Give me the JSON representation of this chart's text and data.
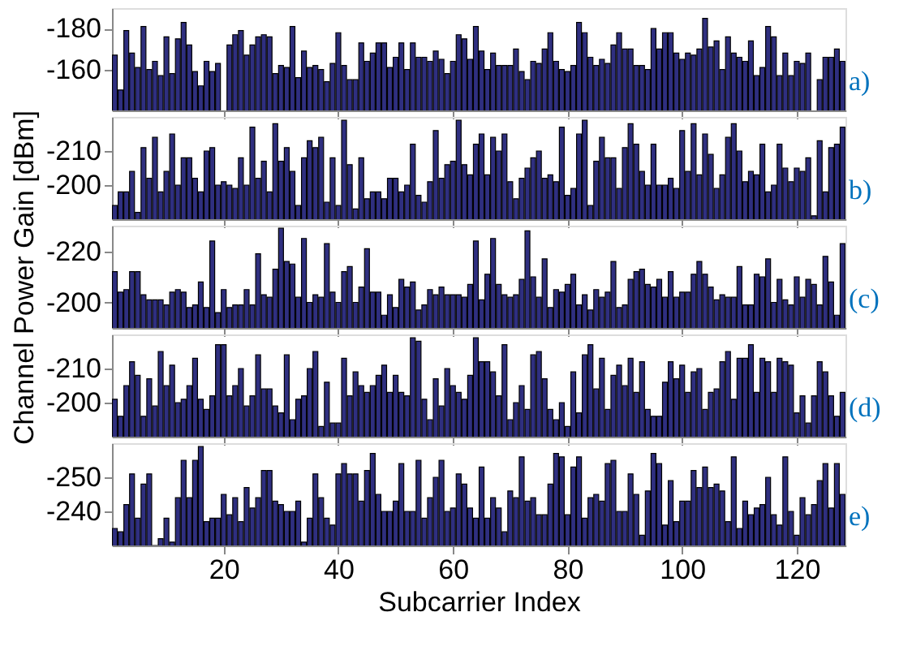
{
  "chart_data": [
    {
      "type": "bar",
      "color": "#2f2f80",
      "x": [
        1,
        2,
        3,
        4,
        5,
        6,
        7,
        8,
        9,
        10,
        11,
        12,
        13,
        14,
        15,
        16,
        17,
        18,
        19,
        20,
        21,
        22,
        23,
        24,
        25,
        26,
        27,
        28,
        29,
        30,
        31,
        32,
        33,
        34,
        35,
        36,
        37,
        38,
        39,
        40,
        41,
        42,
        43,
        44,
        45,
        46,
        47,
        48,
        49,
        50,
        51,
        52,
        53,
        54,
        55,
        56,
        57,
        58,
        59,
        60,
        61,
        62,
        63,
        64,
        65,
        66,
        67,
        68,
        69,
        70,
        71,
        72,
        73,
        74,
        75,
        76,
        77,
        78,
        79,
        80,
        81,
        82,
        83,
        84,
        85,
        86,
        87,
        88,
        89,
        90,
        91,
        92,
        93,
        94,
        95,
        96,
        97,
        98,
        99,
        100,
        101,
        102,
        103,
        104,
        105,
        106,
        107,
        108,
        109,
        110,
        111,
        112,
        113,
        114,
        115,
        116,
        117,
        118,
        119,
        120,
        121,
        122,
        123,
        124,
        125,
        126,
        127,
        128
      ],
      "values": [
        -167,
        -150,
        -179,
        -168,
        -161,
        -181,
        -160,
        -164,
        -157,
        -176,
        -158,
        -175,
        -183,
        -172,
        -159,
        -152,
        -164,
        -159,
        -163,
        null,
        -172,
        -177,
        -179,
        -167,
        -172,
        -176,
        -177,
        -176,
        -158,
        -162,
        -161,
        -181,
        -156,
        -169,
        -161,
        -162,
        -160,
        -154,
        -163,
        -178,
        -162,
        -155,
        -155,
        -173,
        -164,
        -168,
        -173,
        -173,
        -161,
        -166,
        -173,
        -160,
        -173,
        -166,
        -166,
        -164,
        -169,
        -165,
        -158,
        -164,
        -177,
        -175,
        -165,
        -181,
        -169,
        -160,
        -168,
        -162,
        -162,
        -162,
        -170,
        -159,
        -155,
        -164,
        -163,
        -170,
        -178,
        -164,
        -160,
        -159,
        -162,
        -183,
        -178,
        -166,
        -162,
        -165,
        -163,
        -172,
        -178,
        -170,
        -170,
        -162,
        -162,
        -160,
        -180,
        -170,
        -178,
        -178,
        -168,
        -165,
        -168,
        -167,
        -170,
        -185,
        -171,
        -174,
        -160,
        -176,
        -168,
        -166,
        -164,
        -174,
        -157,
        -161,
        -181,
        -176,
        -157,
        -168,
        -157,
        -164,
        -163,
        -168,
        null,
        -155,
        -166,
        -166,
        -170,
        -164
      ],
      "xlim": [
        0.5,
        128.5
      ],
      "xticks": [
        20,
        40,
        60,
        80,
        100,
        120
      ],
      "ylim": [
        -140,
        -190
      ],
      "yticks": [
        -180,
        -160
      ],
      "tick_labels": "y",
      "annotations": [
        "a)"
      ]
    },
    {
      "type": "bar",
      "color": "#2f2f80",
      "x": [
        1,
        2,
        3,
        4,
        5,
        6,
        7,
        8,
        9,
        10,
        11,
        12,
        13,
        14,
        15,
        16,
        17,
        18,
        19,
        20,
        21,
        22,
        23,
        24,
        25,
        26,
        27,
        28,
        29,
        30,
        31,
        32,
        33,
        34,
        35,
        36,
        37,
        38,
        39,
        40,
        41,
        42,
        43,
        44,
        45,
        46,
        47,
        48,
        49,
        50,
        51,
        52,
        53,
        54,
        55,
        56,
        57,
        58,
        59,
        60,
        61,
        62,
        63,
        64,
        65,
        66,
        67,
        68,
        69,
        70,
        71,
        72,
        73,
        74,
        75,
        76,
        77,
        78,
        79,
        80,
        81,
        82,
        83,
        84,
        85,
        86,
        87,
        88,
        89,
        90,
        91,
        92,
        93,
        94,
        95,
        96,
        97,
        98,
        99,
        100,
        101,
        102,
        103,
        104,
        105,
        106,
        107,
        108,
        109,
        110,
        111,
        112,
        113,
        114,
        115,
        116,
        117,
        118,
        119,
        120,
        121,
        122,
        123,
        124,
        125,
        126,
        127,
        128
      ],
      "values": [
        -194,
        -198,
        -198,
        -204,
        -192,
        -211,
        -202,
        -214,
        -198,
        -204,
        -215,
        -200,
        -208,
        -208,
        -202,
        -198,
        -210,
        -211,
        -200,
        -201,
        -200,
        -199,
        -208,
        -200,
        -217,
        -202,
        -207,
        -198,
        -218,
        -207,
        -211,
        -204,
        -194,
        -208,
        -213,
        -211,
        -214,
        -195,
        -208,
        -194,
        -219,
        -206,
        -193,
        -208,
        -196,
        -198,
        -198,
        -196,
        -202,
        -202,
        -198,
        -200,
        -212,
        -197,
        -195,
        -201,
        -216,
        -202,
        -206,
        -207,
        -219,
        -206,
        -203,
        -212,
        -215,
        -203,
        -214,
        -210,
        -215,
        -201,
        -196,
        -202,
        -205,
        -208,
        -210,
        -202,
        -203,
        -201,
        -217,
        -197,
        -199,
        -215,
        -219,
        -194,
        -207,
        -214,
        -208,
        -208,
        -199,
        -211,
        -218,
        -212,
        -204,
        -200,
        -212,
        -200,
        -200,
        -202,
        -199,
        -216,
        -204,
        -218,
        -203,
        -215,
        -209,
        -199,
        -203,
        -214,
        -218,
        -210,
        -201,
        -204,
        -203,
        -212,
        -198,
        -200,
        -212,
        -205,
        -201,
        -205,
        -204,
        -208,
        -191,
        -213,
        -198,
        -211,
        -212,
        -217
      ],
      "xlim": [
        0.5,
        128.5
      ],
      "xticks": [
        20,
        40,
        60,
        80,
        100,
        120
      ],
      "ylim": [
        -190,
        -220
      ],
      "yticks": [
        -210,
        -200
      ],
      "tick_labels": "y",
      "annotations": [
        "b)"
      ]
    },
    {
      "type": "bar",
      "color": "#2f2f80",
      "x": [
        1,
        2,
        3,
        4,
        5,
        6,
        7,
        8,
        9,
        10,
        11,
        12,
        13,
        14,
        15,
        16,
        17,
        18,
        19,
        20,
        21,
        22,
        23,
        24,
        25,
        26,
        27,
        28,
        29,
        30,
        31,
        32,
        33,
        34,
        35,
        36,
        37,
        38,
        39,
        40,
        41,
        42,
        43,
        44,
        45,
        46,
        47,
        48,
        49,
        50,
        51,
        52,
        53,
        54,
        55,
        56,
        57,
        58,
        59,
        60,
        61,
        62,
        63,
        64,
        65,
        66,
        67,
        68,
        69,
        70,
        71,
        72,
        73,
        74,
        75,
        76,
        77,
        78,
        79,
        80,
        81,
        82,
        83,
        84,
        85,
        86,
        87,
        88,
        89,
        90,
        91,
        92,
        93,
        94,
        95,
        96,
        97,
        98,
        99,
        100,
        101,
        102,
        103,
        104,
        105,
        106,
        107,
        108,
        109,
        110,
        111,
        112,
        113,
        114,
        115,
        116,
        117,
        118,
        119,
        120,
        121,
        122,
        123,
        124,
        125,
        126,
        127,
        128
      ],
      "values": [
        -212,
        -204,
        -205,
        -212,
        -212,
        -203,
        -201,
        -201,
        -201,
        -199,
        -204,
        -205,
        -204,
        -198,
        -199,
        -208,
        -198,
        -224,
        -196,
        -205,
        -198,
        -199,
        -199,
        -205,
        -199,
        -219,
        -203,
        -202,
        -213,
        -229,
        -216,
        -215,
        -202,
        -225,
        -200,
        -203,
        -202,
        -223,
        -204,
        -200,
        -212,
        -214,
        -200,
        -206,
        -221,
        -204,
        -204,
        -195,
        -203,
        -198,
        -209,
        -206,
        -208,
        -197,
        -199,
        -205,
        -203,
        -206,
        -203,
        -203,
        -203,
        -202,
        -207,
        -224,
        -201,
        -211,
        -225,
        -207,
        -203,
        -202,
        -203,
        -209,
        -228,
        -210,
        -202,
        -217,
        -198,
        -205,
        -204,
        -207,
        -211,
        -199,
        -203,
        -197,
        -205,
        -202,
        -204,
        -216,
        -198,
        -199,
        -209,
        -212,
        -213,
        -207,
        -206,
        -209,
        -202,
        -212,
        -202,
        -204,
        -204,
        -211,
        -216,
        -211,
        -206,
        -201,
        -203,
        -202,
        -202,
        -214,
        -199,
        -199,
        -211,
        -210,
        -217,
        -200,
        -209,
        -201,
        -199,
        -210,
        -202,
        -209,
        -207,
        -199,
        -218,
        -208,
        -195,
        -223
      ],
      "xlim": [
        0.5,
        128.5
      ],
      "xticks": [
        20,
        40,
        60,
        80,
        100,
        120
      ],
      "ylim": [
        -190,
        -230
      ],
      "yticks": [
        -220,
        -200
      ],
      "tick_labels": "y",
      "ylabel": "Channel Power Gain [dBm]",
      "annotations": [
        "(c)"
      ]
    },
    {
      "type": "bar",
      "color": "#2f2f80",
      "x": [
        1,
        2,
        3,
        4,
        5,
        6,
        7,
        8,
        9,
        10,
        11,
        12,
        13,
        14,
        15,
        16,
        17,
        18,
        19,
        20,
        21,
        22,
        23,
        24,
        25,
        26,
        27,
        28,
        29,
        30,
        31,
        32,
        33,
        34,
        35,
        36,
        37,
        38,
        39,
        40,
        41,
        42,
        43,
        44,
        45,
        46,
        47,
        48,
        49,
        50,
        51,
        52,
        53,
        54,
        55,
        56,
        57,
        58,
        59,
        60,
        61,
        62,
        63,
        64,
        65,
        66,
        67,
        68,
        69,
        70,
        71,
        72,
        73,
        74,
        75,
        76,
        77,
        78,
        79,
        80,
        81,
        82,
        83,
        84,
        85,
        86,
        87,
        88,
        89,
        90,
        91,
        92,
        93,
        94,
        95,
        96,
        97,
        98,
        99,
        100,
        101,
        102,
        103,
        104,
        105,
        106,
        107,
        108,
        109,
        110,
        111,
        112,
        113,
        114,
        115,
        116,
        117,
        118,
        119,
        120,
        121,
        122,
        123,
        124,
        125,
        126,
        127,
        128
      ],
      "values": [
        -201,
        -196,
        -205,
        -212,
        -208,
        -196,
        -207,
        -199,
        -215,
        -205,
        -211,
        -200,
        -201,
        -205,
        -213,
        -201,
        -198,
        -202,
        -217,
        -217,
        -202,
        -205,
        -210,
        -199,
        -202,
        -214,
        -204,
        -204,
        -199,
        -197,
        -214,
        -195,
        -201,
        -202,
        -210,
        -215,
        -193,
        -206,
        -194,
        -194,
        -213,
        -202,
        -209,
        -205,
        -203,
        -205,
        -208,
        -211,
        -203,
        -208,
        -203,
        -202,
        -219,
        -218,
        -201,
        -195,
        -207,
        -199,
        -210,
        -205,
        -203,
        -201,
        -208,
        -219,
        -212,
        -212,
        -209,
        -202,
        -217,
        -195,
        -200,
        -205,
        -198,
        -214,
        -215,
        -207,
        -198,
        -195,
        -200,
        -193,
        -209,
        -197,
        -214,
        -217,
        -204,
        -213,
        -198,
        -208,
        -211,
        -205,
        -213,
        -203,
        -212,
        -198,
        -196,
        -196,
        -206,
        -212,
        -207,
        -211,
        -203,
        -209,
        -210,
        -198,
        -203,
        -204,
        -212,
        -215,
        -201,
        -213,
        -213,
        -217,
        -203,
        -213,
        -212,
        -203,
        -213,
        -212,
        -211,
        -197,
        -202,
        -194,
        -202,
        -212,
        -209,
        -202,
        -196,
        -203
      ],
      "xlim": [
        0.5,
        128.5
      ],
      "xticks": [
        20,
        40,
        60,
        80,
        100,
        120
      ],
      "ylim": [
        -190,
        -220
      ],
      "yticks": [
        -210,
        -200
      ],
      "tick_labels": "y",
      "annotations": [
        "(d)"
      ]
    },
    {
      "type": "bar",
      "color": "#2f2f80",
      "x": [
        1,
        2,
        3,
        4,
        5,
        6,
        7,
        8,
        9,
        10,
        11,
        12,
        13,
        14,
        15,
        16,
        17,
        18,
        19,
        20,
        21,
        22,
        23,
        24,
        25,
        26,
        27,
        28,
        29,
        30,
        31,
        32,
        33,
        34,
        35,
        36,
        37,
        38,
        39,
        40,
        41,
        42,
        43,
        44,
        45,
        46,
        47,
        48,
        49,
        50,
        51,
        52,
        53,
        54,
        55,
        56,
        57,
        58,
        59,
        60,
        61,
        62,
        63,
        64,
        65,
        66,
        67,
        68,
        69,
        70,
        71,
        72,
        73,
        74,
        75,
        76,
        77,
        78,
        79,
        80,
        81,
        82,
        83,
        84,
        85,
        86,
        87,
        88,
        89,
        90,
        91,
        92,
        93,
        94,
        95,
        96,
        97,
        98,
        99,
        100,
        101,
        102,
        103,
        104,
        105,
        106,
        107,
        108,
        109,
        110,
        111,
        112,
        113,
        114,
        115,
        116,
        117,
        118,
        119,
        120,
        121,
        122,
        123,
        124,
        125,
        126,
        127,
        128
      ],
      "values": [
        -235,
        -234,
        -242,
        -251,
        -238,
        -248,
        -251,
        -230,
        -232,
        -238,
        -231,
        -244,
        -255,
        -244,
        -255,
        -259,
        -237,
        -238,
        -238,
        -245,
        -239,
        -244,
        -237,
        -247,
        -241,
        -244,
        -252,
        -252,
        -243,
        -242,
        -240,
        -240,
        -243,
        -231,
        -238,
        -251,
        -244,
        -238,
        -236,
        -251,
        -254,
        -251,
        -251,
        -243,
        -252,
        -257,
        -245,
        -240,
        -240,
        -243,
        -254,
        -240,
        -240,
        -255,
        -238,
        -244,
        -250,
        -255,
        -240,
        -241,
        -251,
        -248,
        -241,
        -238,
        -253,
        -238,
        -244,
        -241,
        -234,
        -246,
        -244,
        -256,
        -243,
        -244,
        -239,
        -239,
        -248,
        -257,
        -256,
        -239,
        -253,
        -256,
        -238,
        -244,
        -245,
        -243,
        -254,
        -255,
        -240,
        -240,
        -251,
        -245,
        -233,
        -246,
        -257,
        -254,
        -236,
        -249,
        -237,
        -243,
        -243,
        -252,
        -247,
        -253,
        -247,
        -248,
        -246,
        -237,
        -256,
        -235,
        -243,
        -239,
        -241,
        -242,
        -250,
        -239,
        -236,
        -256,
        -240,
        -233,
        -244,
        -239,
        -242,
        -249,
        -254,
        -241,
        -254,
        -245
      ],
      "xlim": [
        0.5,
        128.5
      ],
      "xticks": [
        20,
        40,
        60,
        80,
        100,
        120
      ],
      "ylim": [
        -230,
        -260
      ],
      "yticks": [
        -250,
        -240
      ],
      "xlabel": "Subcarrier Index",
      "annotations": [
        "e)"
      ]
    }
  ]
}
